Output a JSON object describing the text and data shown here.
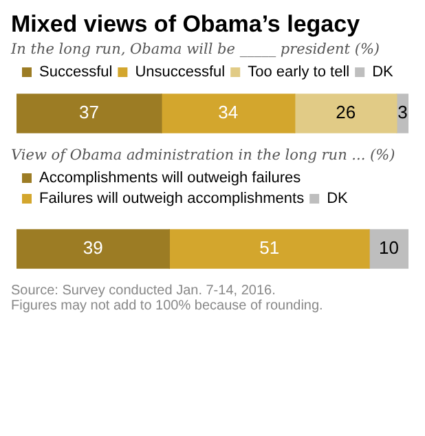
{
  "chart_data": [
    {
      "type": "bar",
      "title": "Mixed views of Obama’s legacy",
      "subtitle": "In the long run, Obama will be _____ president (%)",
      "categories": [
        null
      ],
      "orientation": "horizontal",
      "stacked": true,
      "data_labels": true,
      "legend": "top",
      "tick_labels": false,
      "series": [
        {
          "name": "Successful",
          "color": "#9c7c24",
          "values": [
            37
          ]
        },
        {
          "name": "Unsuccessful",
          "color": "#d3a62d",
          "values": [
            34
          ]
        },
        {
          "name": "Too early to tell",
          "color": "#e1cb86",
          "values": [
            26
          ]
        },
        {
          "name": "DK",
          "color": "#bebebe",
          "values": [
            3
          ]
        }
      ]
    },
    {
      "type": "bar",
      "subtitle": "View of Obama administration in the long run ... (%)",
      "categories": [
        null
      ],
      "orientation": "horizontal",
      "stacked": true,
      "data_labels": true,
      "legend": "top",
      "tick_labels": false,
      "series": [
        {
          "name": "Accomplishments will outweigh failures",
          "color": "#9c7c24",
          "values": [
            39
          ]
        },
        {
          "name": "Failures will outweigh accomplishments",
          "color": "#d3a62d",
          "values": [
            51
          ]
        },
        {
          "name": "DK",
          "color": "#bebebe",
          "values": [
            10
          ]
        }
      ],
      "annotations": [
        "Source: Survey conducted Jan. 7-14, 2016.",
        "Figures may not add to 100% because of rounding."
      ]
    }
  ]
}
